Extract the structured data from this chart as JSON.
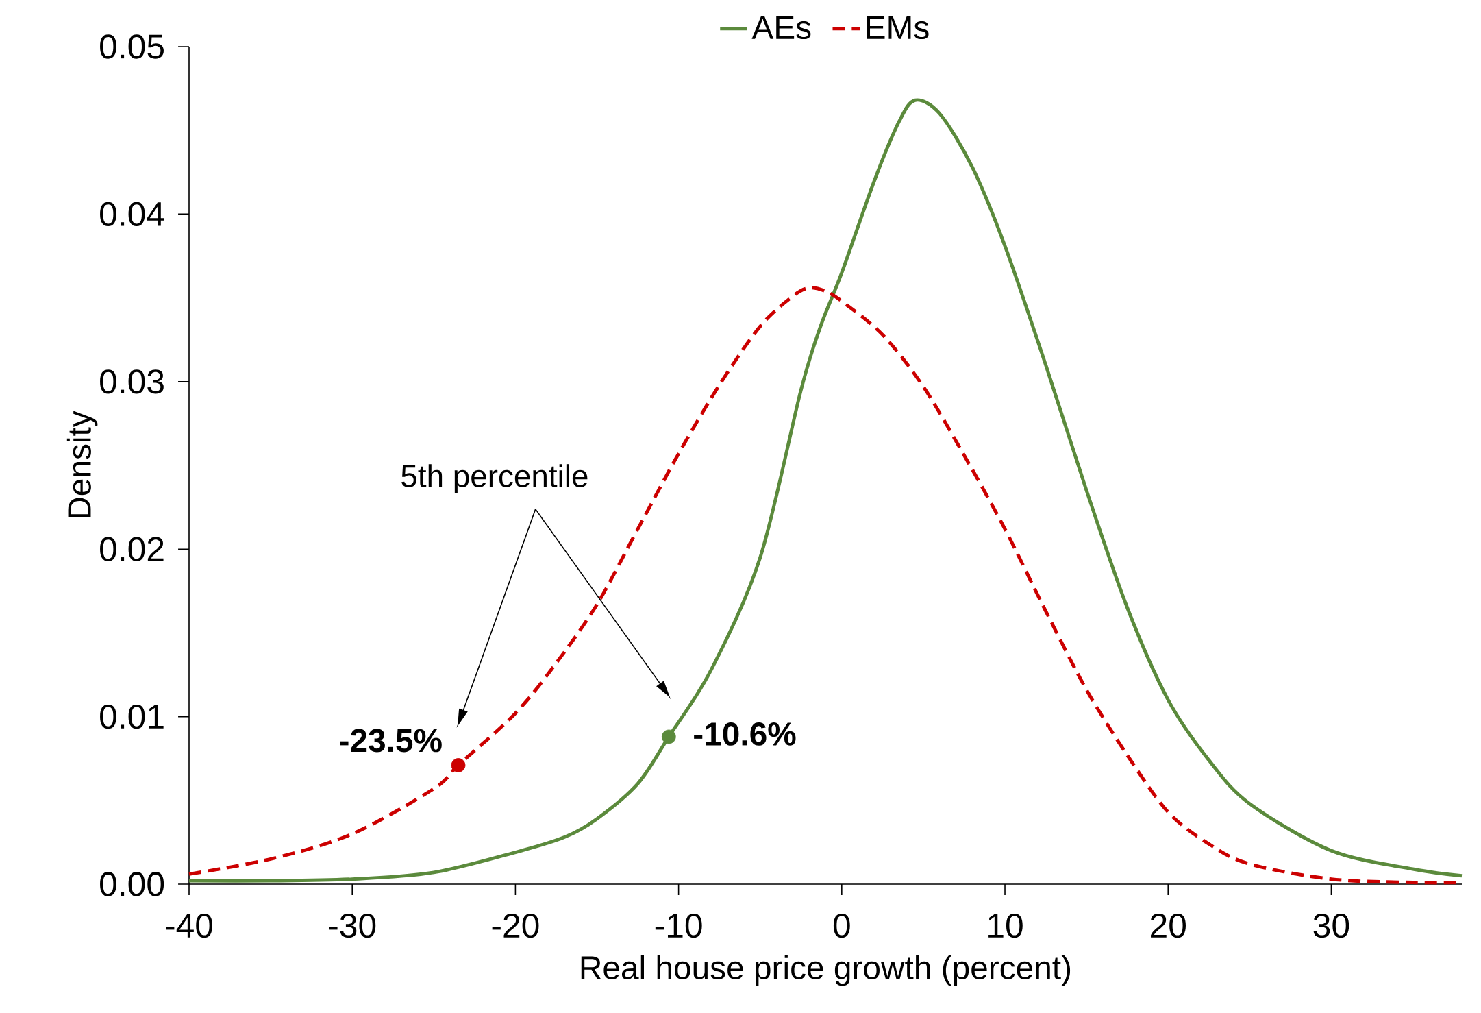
{
  "chart_data": {
    "type": "line",
    "xlabel": "Real house price growth (percent)",
    "ylabel": "Density",
    "xlim": [
      -40,
      38
    ],
    "ylim": [
      0,
      0.05
    ],
    "xticks": [
      -40,
      -30,
      -20,
      -10,
      0,
      10,
      20,
      30
    ],
    "yticks": [
      {
        "value": 0,
        "label": "0.00"
      },
      0.01,
      0.02,
      0.03,
      0.04,
      0.05
    ],
    "legend": "top",
    "series": [
      {
        "name": "AEs",
        "color": "#5b8a3c",
        "line_style": "solid",
        "x": [
          -40,
          -35,
          -30,
          -25,
          -20,
          -17,
          -15,
          -12.5,
          -10.6,
          -8,
          -5,
          -2.5,
          -1.3,
          0,
          2,
          3.5,
          4.5,
          6,
          8,
          10,
          12.5,
          15,
          17.5,
          20,
          22.5,
          25,
          30,
          35,
          38
        ],
        "values": [
          0.0002,
          0.0002,
          0.0003,
          0.0007,
          0.0019,
          0.0028,
          0.0039,
          0.006,
          0.0088,
          0.0128,
          0.0195,
          0.0295,
          0.0333,
          0.0365,
          0.042,
          0.0455,
          0.0468,
          0.046,
          0.0428,
          0.0381,
          0.031,
          0.0235,
          0.0165,
          0.011,
          0.0074,
          0.0048,
          0.002,
          0.0009,
          0.0005
        ]
      },
      {
        "name": "EMs",
        "color": "#cc0000",
        "line_style": "dashed",
        "x": [
          -40,
          -35,
          -30,
          -25,
          -23.5,
          -20,
          -17.5,
          -15,
          -12.5,
          -10,
          -7.5,
          -5,
          -3,
          -2,
          -1,
          0,
          2.5,
          5,
          7.5,
          10,
          12.5,
          15,
          17.5,
          20,
          22.5,
          25,
          30,
          35,
          38
        ],
        "values": [
          0.0006,
          0.0015,
          0.003,
          0.0057,
          0.0071,
          0.0102,
          0.0132,
          0.0167,
          0.0212,
          0.0257,
          0.0298,
          0.0333,
          0.0351,
          0.0356,
          0.0354,
          0.0348,
          0.0328,
          0.0297,
          0.0256,
          0.0212,
          0.0163,
          0.0116,
          0.0077,
          0.0043,
          0.0024,
          0.0012,
          0.0003,
          0.0001,
          0.0001
        ]
      },
      {
        "type": "scatter",
        "marker": "circle",
        "color": "#cc0000",
        "x": [
          -23.5
        ],
        "values": [
          0.0071
        ]
      },
      {
        "type": "scatter",
        "marker": "circle",
        "color": "#5b8a3c",
        "x": [
          -10.6
        ],
        "values": [
          0.0088
        ]
      }
    ],
    "annotations": [
      "5th percentile",
      {
        "text": "-23.5%",
        "x": -23.5,
        "y": 0.0071
      },
      {
        "text": "-10.6%",
        "x": -10.6,
        "y": 0.0088
      }
    ]
  }
}
